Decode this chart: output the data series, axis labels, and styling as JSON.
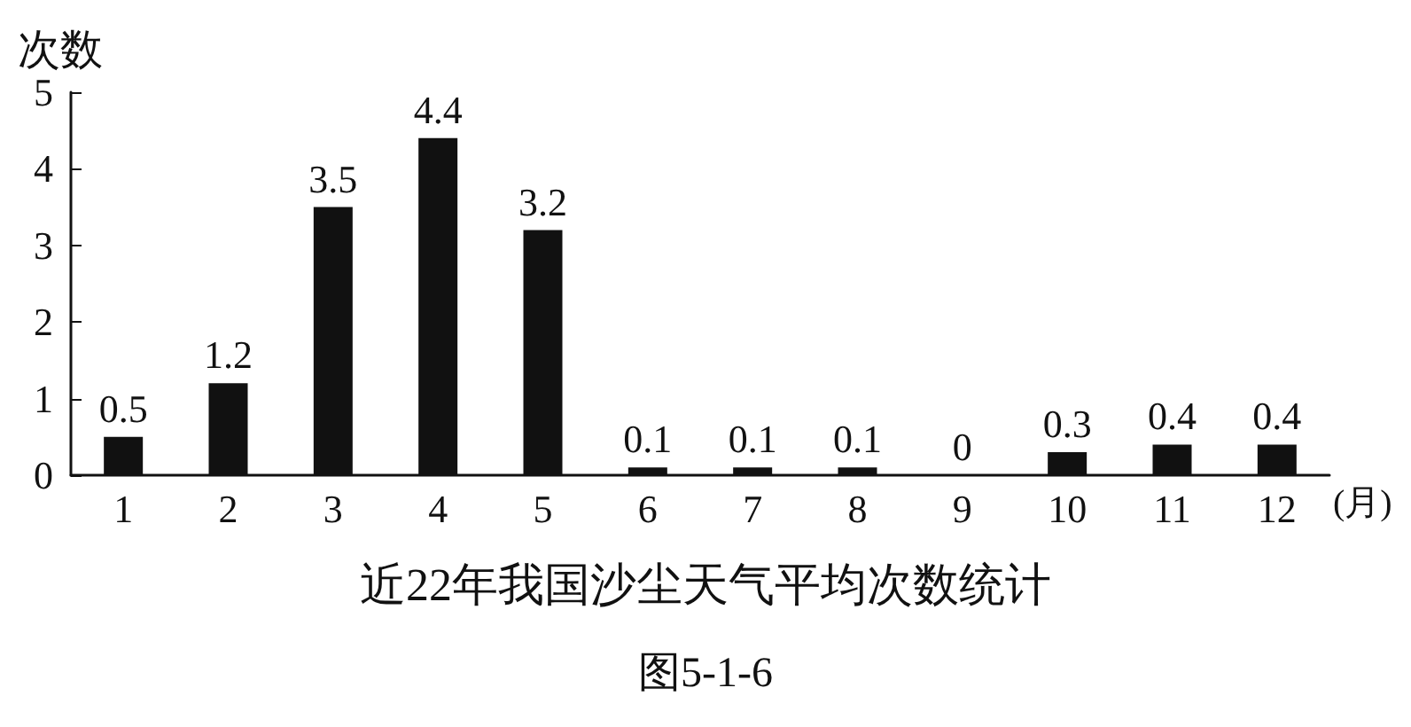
{
  "chart_data": {
    "type": "bar",
    "title": "近22年我国沙尘天气平均次数统计",
    "xlabel": "(月)",
    "ylabel": "次数",
    "categories": [
      "1",
      "2",
      "3",
      "4",
      "5",
      "6",
      "7",
      "8",
      "9",
      "10",
      "11",
      "12"
    ],
    "values": [
      0.5,
      1.2,
      3.5,
      4.4,
      3.2,
      0.1,
      0.1,
      0.1,
      0,
      0.3,
      0.4,
      0.4
    ],
    "color": "#111111",
    "ylim": [
      0,
      5
    ],
    "yticks": [
      0,
      1,
      2,
      3,
      4,
      5
    ],
    "data_labels": true,
    "grid": false,
    "annotations": [
      "图5-1-6"
    ]
  }
}
